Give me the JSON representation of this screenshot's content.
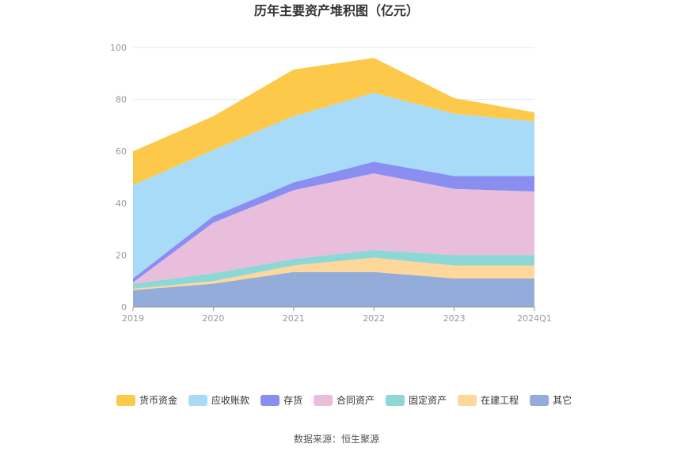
{
  "chart_data": {
    "type": "area",
    "stacked": true,
    "title": "历年主要资产堆积图（亿元）",
    "categories": [
      "2019",
      "2020",
      "2021",
      "2022",
      "2023",
      "2024Q1"
    ],
    "ylim": [
      0,
      100
    ],
    "yticks": [
      0,
      20,
      40,
      60,
      80,
      100
    ],
    "grid": true,
    "legend_position": "bottom",
    "series": [
      {
        "name": "其它",
        "color": "#93acd9",
        "values": [
          6.5,
          9.0,
          13.5,
          13.5,
          11.0,
          11.0
        ]
      },
      {
        "name": "在建工程",
        "color": "#fdd89a",
        "values": [
          0.5,
          1.0,
          2.5,
          5.5,
          5.0,
          5.0
        ]
      },
      {
        "name": "固定资产",
        "color": "#8ed7d7",
        "values": [
          2.0,
          3.0,
          2.5,
          3.0,
          4.0,
          4.0
        ]
      },
      {
        "name": "合同资产",
        "color": "#e8bedc",
        "values": [
          0.5,
          19.5,
          26.5,
          29.5,
          25.5,
          24.5
        ]
      },
      {
        "name": "存货",
        "color": "#8a8ef0",
        "values": [
          1.5,
          2.5,
          3.0,
          4.5,
          5.0,
          6.0
        ]
      },
      {
        "name": "应收账款",
        "color": "#a8dbf8",
        "values": [
          36.0,
          25.5,
          25.5,
          26.5,
          24.0,
          21.0
        ]
      },
      {
        "name": "货币资金",
        "color": "#fdc94b",
        "values": [
          13.0,
          13.0,
          18.0,
          13.5,
          6.0,
          3.5
        ]
      }
    ],
    "legend_order": [
      "货币资金",
      "应收账款",
      "存货",
      "合同资产",
      "固定资产",
      "在建工程",
      "其它"
    ],
    "source": "数据来源：恒生聚源"
  }
}
